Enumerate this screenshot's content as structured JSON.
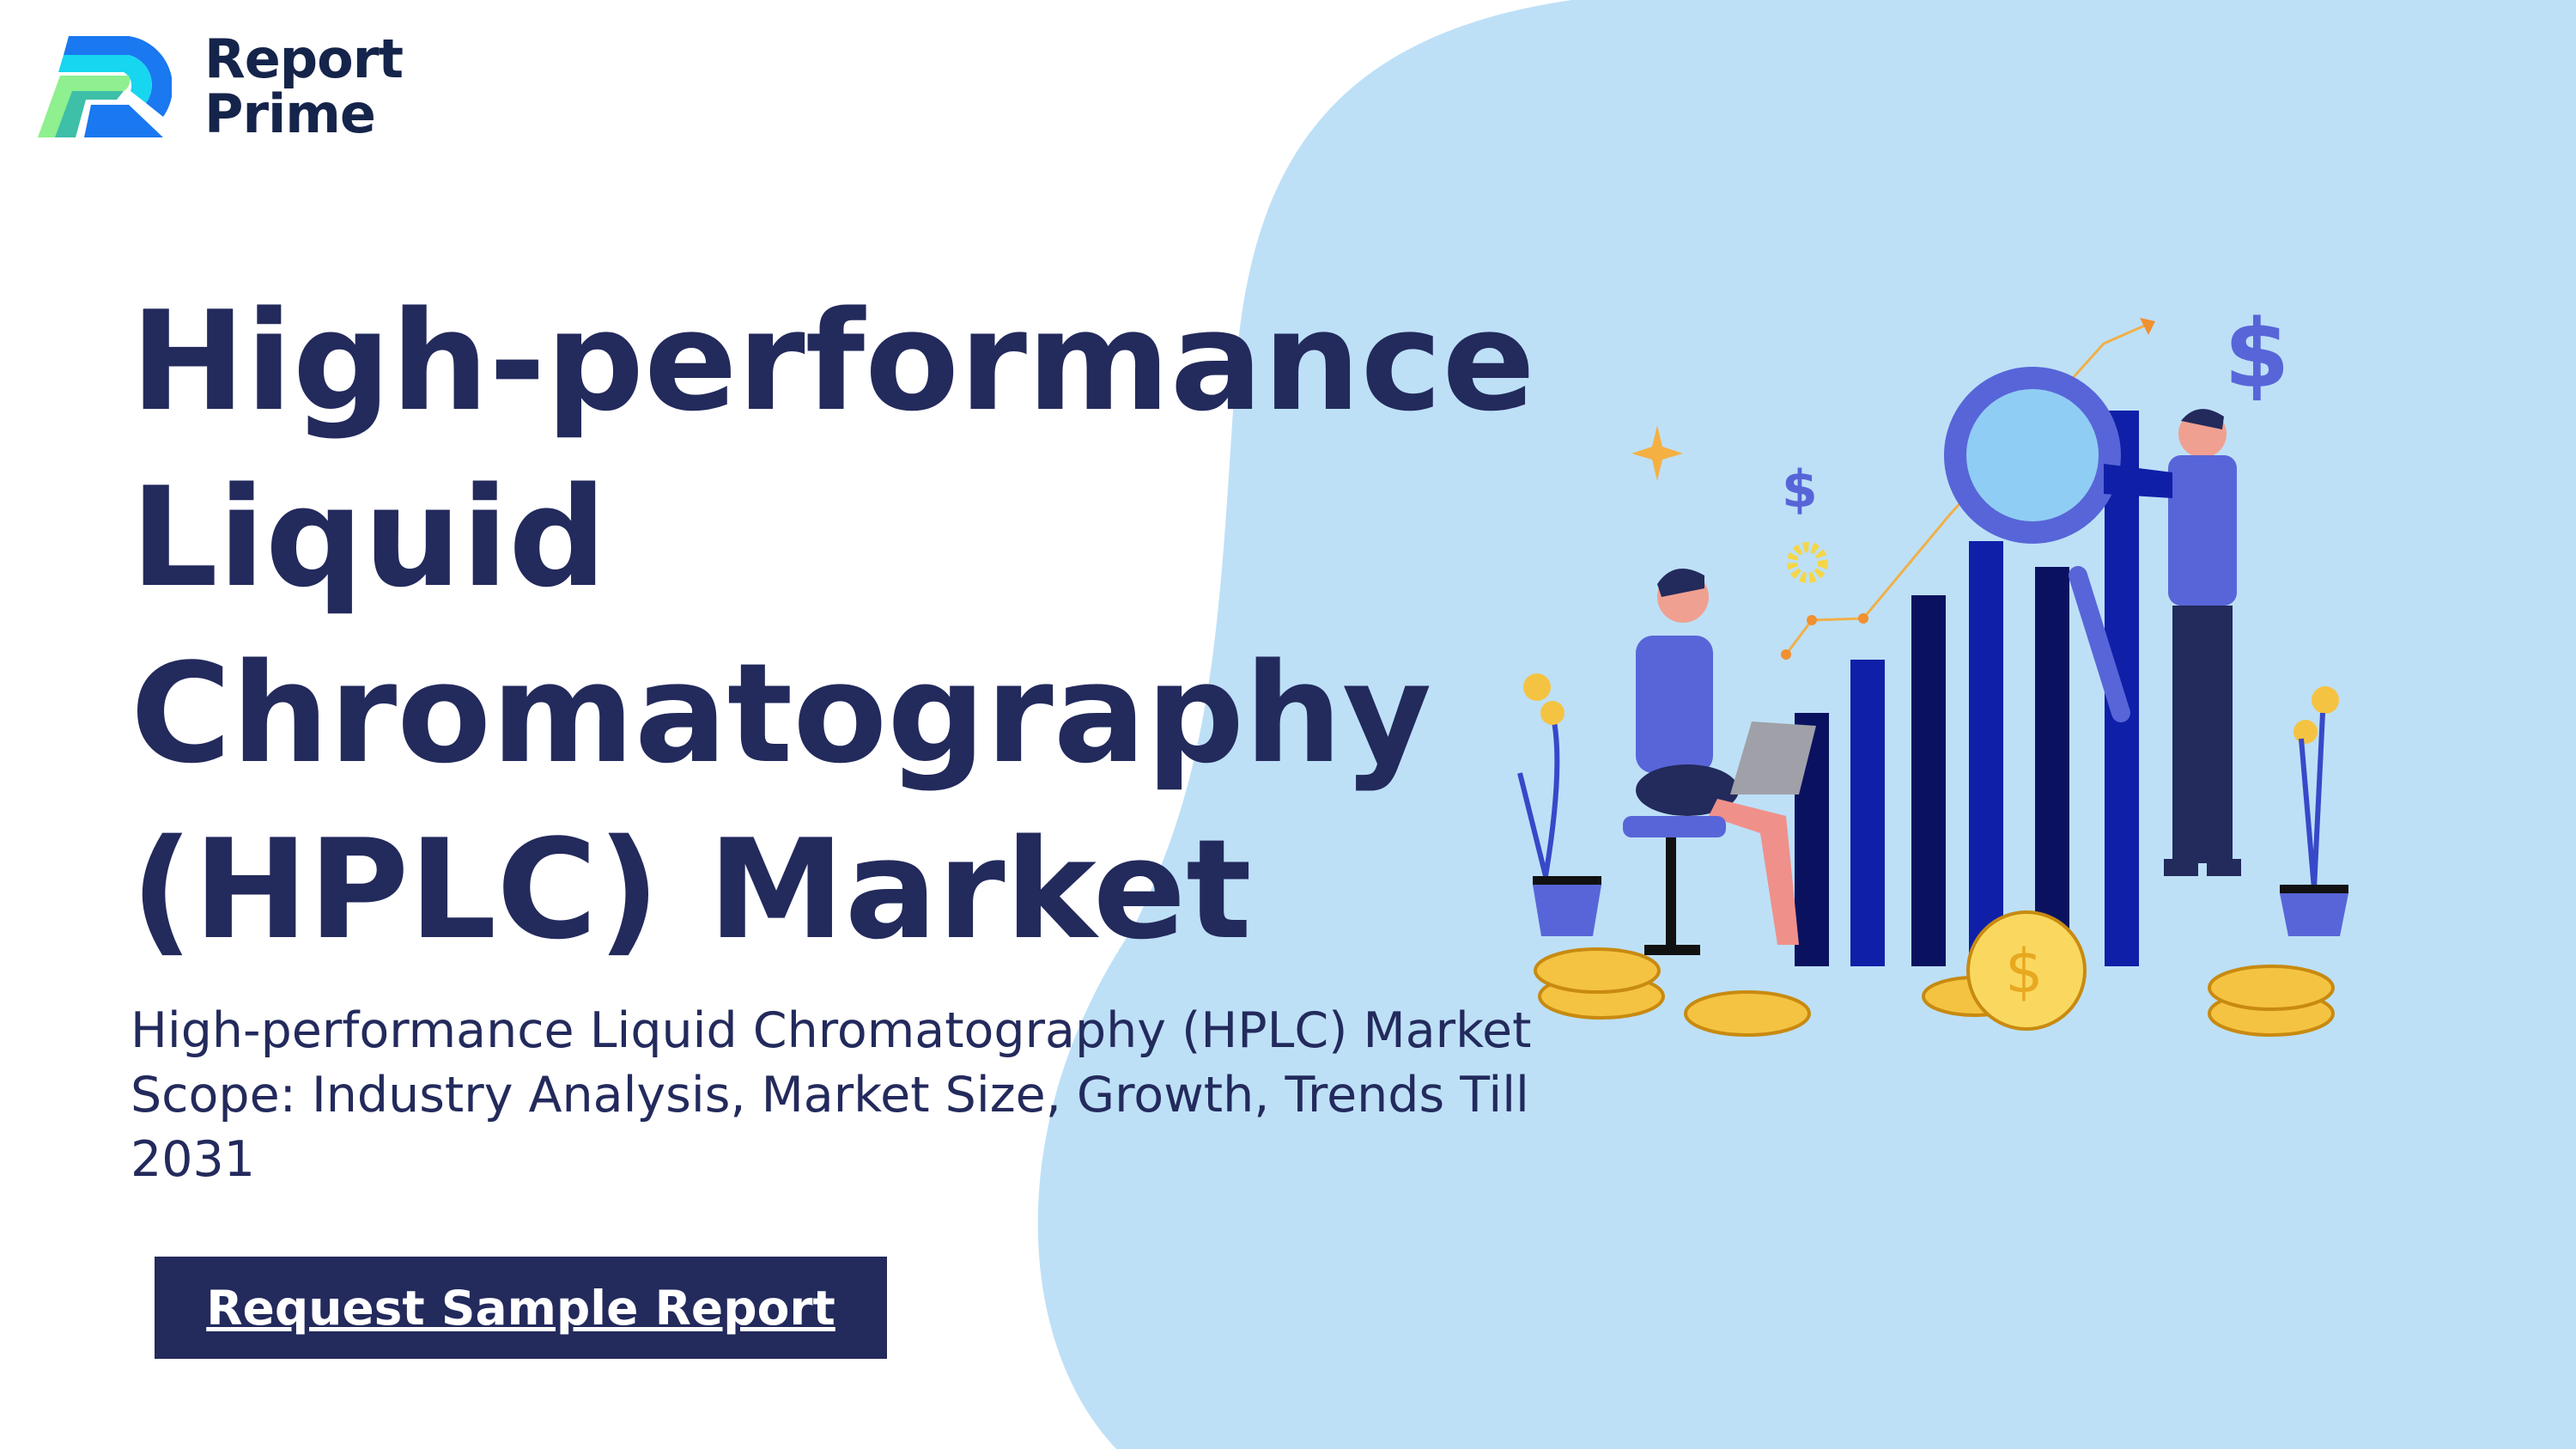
{
  "brand": {
    "name_line1": "Report",
    "name_line2": "Prime",
    "logo_icon": "report-prime-r-logo"
  },
  "hero": {
    "title": "High-performance Liquid Chromatography (HPLC) Market",
    "subtitle": "High-performance Liquid Chromatography (HPLC) Market Scope: Industry Analysis, Market Size, Growth, Trends Till 2031",
    "cta_label": "Request Sample Report"
  },
  "colors": {
    "navy": "#232a5c",
    "blob": "#bde0f7",
    "accent_blue": "#0f1fa8",
    "coin": "#f5c342"
  },
  "illustration": {
    "icons": [
      "dollar-icon",
      "gear-icon",
      "sparkle-icon",
      "magnifier-icon",
      "bar-chart-icon",
      "coin-stack-icon",
      "money-plant-icon"
    ]
  }
}
